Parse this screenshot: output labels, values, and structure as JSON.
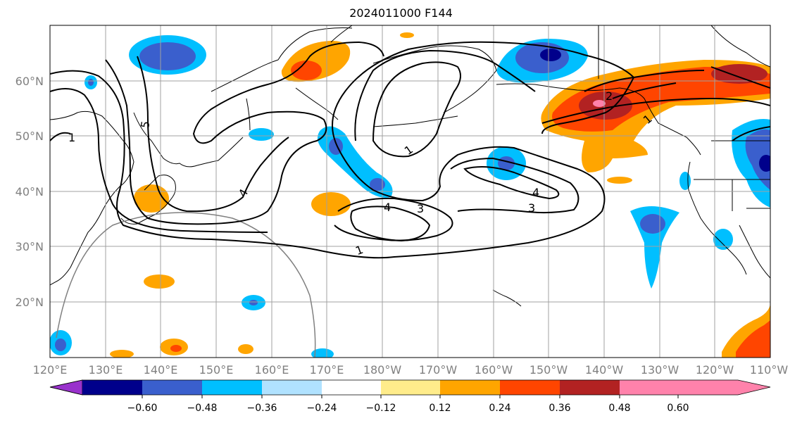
{
  "title": "2024011000 F144",
  "map": {
    "lat_labels": [
      "60°N",
      "50°N",
      "40°N",
      "30°N",
      "20°N"
    ],
    "lon_labels": [
      "120°E",
      "130°E",
      "140°E",
      "150°E",
      "160°E",
      "170°E",
      "180°W",
      "170°W",
      "160°W",
      "150°W",
      "140°W",
      "130°W",
      "120°W",
      "110°W"
    ],
    "contour_labels": [
      "1",
      "5",
      "4",
      "1",
      "4",
      "3",
      "4",
      "3",
      "1",
      "2",
      "1"
    ],
    "grid": true
  },
  "colorbar": {
    "tick_labels": [
      "−0.60",
      "−0.48",
      "−0.36",
      "−0.24",
      "−0.12",
      "0.12",
      "0.24",
      "0.36",
      "0.48",
      "0.60"
    ],
    "colors": [
      "#9932cc",
      "#00008b",
      "#3a5fcd",
      "#00bfff",
      "#b0e2ff",
      "#ffffff",
      "#ffec8b",
      "#ffa500",
      "#ff4500",
      "#b22222",
      "#ff82ab"
    ]
  }
}
